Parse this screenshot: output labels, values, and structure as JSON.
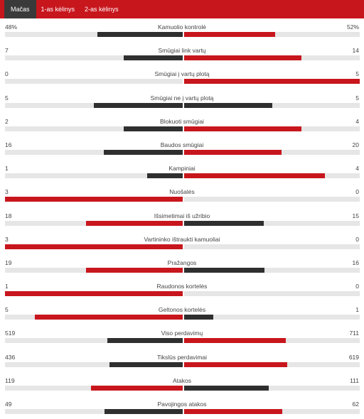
{
  "tabs": [
    {
      "label": "Mačas",
      "active": true
    },
    {
      "label": "1-as kėlinys",
      "active": false
    },
    {
      "label": "2-as kėlinys",
      "active": false
    }
  ],
  "colors": {
    "home": "#2f2f2f",
    "away": "#c8161d",
    "track": "#e6e6e6",
    "tabbar": "#c8161d",
    "active_tab": "#3a3a3a"
  },
  "stats": [
    {
      "label": "Kamuolio kontrolė",
      "left": "48%",
      "right": "52%",
      "left_frac": 0.48,
      "right_frac": 0.52,
      "left_color": "home",
      "right_color": "away"
    },
    {
      "label": "Smūgiai link vartų",
      "left": "7",
      "right": "14",
      "left_frac": 0.333,
      "right_frac": 0.667,
      "left_color": "home",
      "right_color": "away"
    },
    {
      "label": "Smūgiai į vartų plotą",
      "left": "0",
      "right": "5",
      "left_frac": 0,
      "right_frac": 1,
      "left_color": "home",
      "right_color": "away"
    },
    {
      "label": "Smūgiai ne į vartų plotą",
      "left": "5",
      "right": "5",
      "left_frac": 0.5,
      "right_frac": 0.5,
      "left_color": "home",
      "right_color": "home"
    },
    {
      "label": "Blokuoti smūgiai",
      "left": "2",
      "right": "4",
      "left_frac": 0.333,
      "right_frac": 0.667,
      "left_color": "home",
      "right_color": "away"
    },
    {
      "label": "Baudos smūgiai",
      "left": "16",
      "right": "20",
      "left_frac": 0.444,
      "right_frac": 0.556,
      "left_color": "home",
      "right_color": "away"
    },
    {
      "label": "Kampiniai",
      "left": "1",
      "right": "4",
      "left_frac": 0.2,
      "right_frac": 0.8,
      "left_color": "home",
      "right_color": "away"
    },
    {
      "label": "Nuošalės",
      "left": "3",
      "right": "0",
      "left_frac": 1,
      "right_frac": 0,
      "left_color": "away",
      "right_color": "home"
    },
    {
      "label": "Išsimetimai iš užribio",
      "left": "18",
      "right": "15",
      "left_frac": 0.545,
      "right_frac": 0.455,
      "left_color": "away",
      "right_color": "home"
    },
    {
      "label": "Vartininko ištraukti kamuoliai",
      "left": "3",
      "right": "0",
      "left_frac": 1,
      "right_frac": 0,
      "left_color": "away",
      "right_color": "home"
    },
    {
      "label": "Pražangos",
      "left": "19",
      "right": "16",
      "left_frac": 0.543,
      "right_frac": 0.457,
      "left_color": "away",
      "right_color": "home"
    },
    {
      "label": "Raudonos kortelės",
      "left": "1",
      "right": "0",
      "left_frac": 1,
      "right_frac": 0,
      "left_color": "away",
      "right_color": "home"
    },
    {
      "label": "Geltonos kortelės",
      "left": "5",
      "right": "1",
      "left_frac": 0.833,
      "right_frac": 0.167,
      "left_color": "away",
      "right_color": "home"
    },
    {
      "label": "Viso perdavimų",
      "left": "519",
      "right": "711",
      "left_frac": 0.422,
      "right_frac": 0.578,
      "left_color": "home",
      "right_color": "away"
    },
    {
      "label": "Tikslūs perdavimai",
      "left": "436",
      "right": "619",
      "left_frac": 0.413,
      "right_frac": 0.587,
      "left_color": "home",
      "right_color": "away"
    },
    {
      "label": "Atakos",
      "left": "119",
      "right": "111",
      "left_frac": 0.517,
      "right_frac": 0.483,
      "left_color": "away",
      "right_color": "home"
    },
    {
      "label": "Pavojingos atakos",
      "left": "49",
      "right": "62",
      "left_frac": 0.441,
      "right_frac": 0.559,
      "left_color": "home",
      "right_color": "away"
    }
  ]
}
